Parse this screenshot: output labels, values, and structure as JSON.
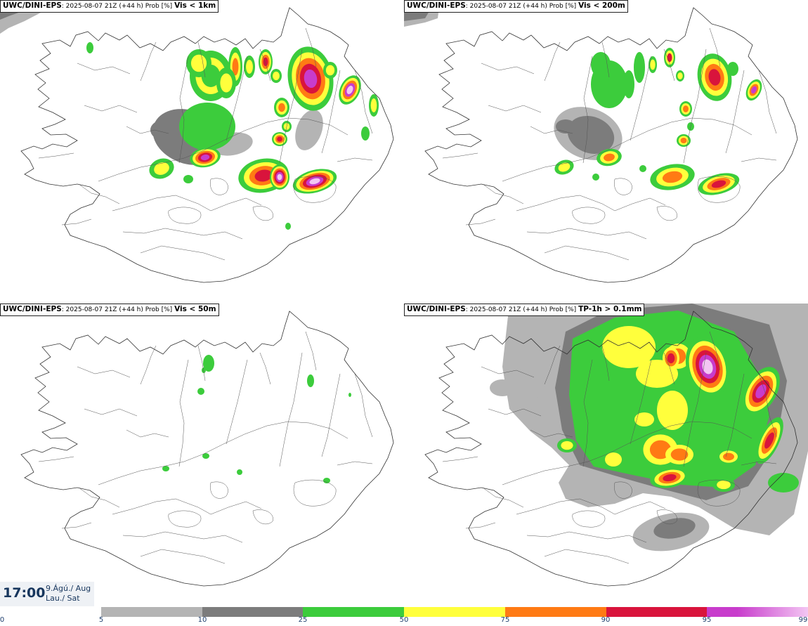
{
  "panels": [
    {
      "source": "UWC/DINI-EPS",
      "info": "2025-08-07 21Z (+44 h) Prob [%]",
      "variable": "Vis < 1km"
    },
    {
      "source": "UWC/DINI-EPS",
      "info": "2025-08-07 21Z (+44 h) Prob [%]",
      "variable": "Vis < 200m"
    },
    {
      "source": "UWC/DINI-EPS",
      "info": "2025-08-07 21Z (+44 h) Prob [%]",
      "variable": "Vis < 50m"
    },
    {
      "source": "UWC/DINI-EPS",
      "info": "2025-08-07 21Z (+44 h) Prob [%]",
      "variable": "TP-1h > 0.1mm"
    }
  ],
  "time": {
    "clock": "17:00",
    "date": "9.Ágú./ Aug",
    "weekday": "Lau./ Sat"
  },
  "colorbar": {
    "ticks": [
      "0",
      "5",
      "10",
      "25",
      "50",
      "75",
      "90",
      "95",
      "99"
    ],
    "bands": [
      {
        "from": 5,
        "to": 10,
        "color": "#b4b4b4"
      },
      {
        "from": 10,
        "to": 25,
        "color": "#7c7c7c"
      },
      {
        "from": 25,
        "to": 50,
        "color": "#3ccc3c"
      },
      {
        "from": 50,
        "to": 75,
        "color": "#ffff3c"
      },
      {
        "from": 75,
        "to": 90,
        "color": "#ff7a14"
      },
      {
        "from": 90,
        "to": 95,
        "color": "#d9143c"
      },
      {
        "from": 95,
        "to": 99,
        "color": "#c83ccc"
      },
      {
        "from": 99,
        "to": 100,
        "color": "#f3c6f3"
      }
    ]
  }
}
